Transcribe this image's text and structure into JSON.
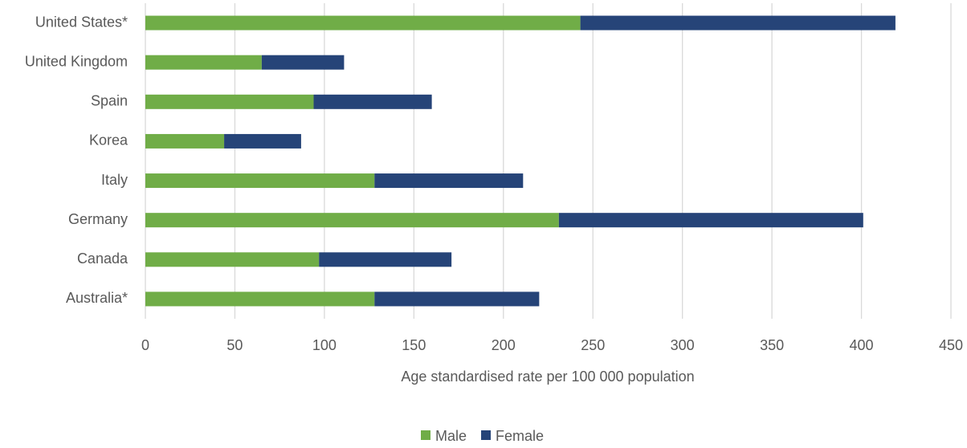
{
  "chart_data": {
    "type": "stacked-barh",
    "categories": [
      "United States*",
      "United Kingdom",
      "Spain",
      "Korea",
      "Italy",
      "Germany",
      "Canada",
      "Australia*"
    ],
    "series": [
      {
        "name": "Male",
        "color": "#70ad47",
        "values": [
          243,
          65,
          94,
          44,
          128,
          231,
          97,
          128
        ]
      },
      {
        "name": "Female",
        "color": "#264478",
        "values": [
          176,
          46,
          66,
          43,
          83,
          170,
          74,
          92
        ]
      }
    ],
    "xlabel": "Age standardised rate per 100 000 population",
    "xlim": [
      0,
      450
    ],
    "xticks": [
      0,
      50,
      100,
      150,
      200,
      250,
      300,
      350,
      400,
      450
    ],
    "grid": true,
    "legend": "bottom"
  }
}
